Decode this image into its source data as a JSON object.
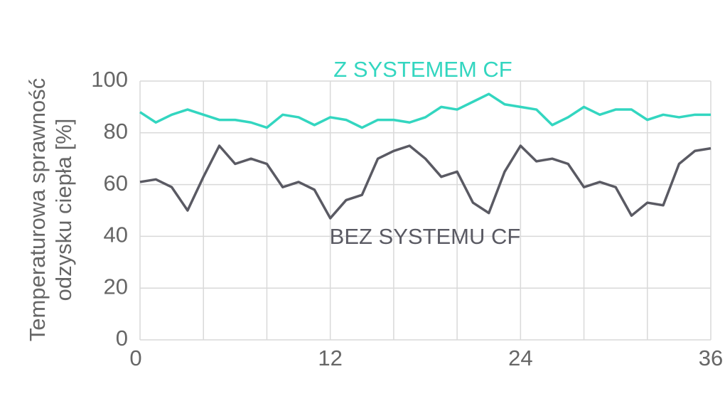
{
  "chart_data": {
    "type": "line",
    "ylabel": [
      "Temperaturowa sprawność",
      "odzysku ciepła [%]"
    ],
    "x": [
      0,
      1,
      2,
      3,
      4,
      5,
      6,
      7,
      8,
      9,
      10,
      11,
      12,
      13,
      14,
      15,
      16,
      17,
      18,
      19,
      20,
      21,
      22,
      23,
      24,
      25,
      26,
      27,
      28,
      29,
      30,
      31,
      32,
      33,
      34,
      35,
      36
    ],
    "series": [
      {
        "name": "Z SYSTEMEM CF",
        "color": "#33d6c0",
        "values": [
          88,
          84,
          87,
          89,
          87,
          85,
          85,
          84,
          82,
          87,
          86,
          83,
          86,
          85,
          82,
          85,
          85,
          84,
          86,
          90,
          89,
          92,
          95,
          91,
          90,
          89,
          83,
          86,
          90,
          87,
          89,
          89,
          85,
          87,
          86,
          87,
          87
        ]
      },
      {
        "name": "BEZ SYSTEMU CF",
        "color": "#5a5a63",
        "values": [
          61,
          62,
          59,
          50,
          63,
          75,
          68,
          70,
          68,
          59,
          61,
          58,
          47,
          54,
          56,
          70,
          73,
          75,
          70,
          63,
          65,
          53,
          49,
          65,
          75,
          69,
          70,
          68,
          59,
          61,
          59,
          48,
          53,
          52,
          68,
          73,
          74
        ]
      }
    ],
    "xlim": [
      0,
      36
    ],
    "xticks": [
      0,
      12,
      24,
      36
    ],
    "xgrid": [
      0,
      4,
      8,
      12,
      16,
      20,
      24,
      28,
      32,
      36
    ],
    "ylim": [
      0,
      100
    ],
    "yticks": [
      0,
      20,
      40,
      60,
      80,
      100
    ],
    "grid": true
  }
}
